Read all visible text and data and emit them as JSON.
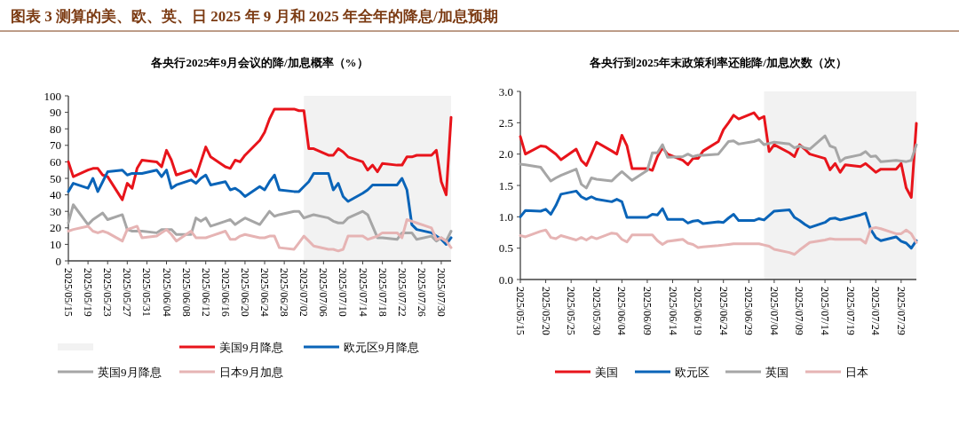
{
  "chart_data": [
    {
      "type": "line",
      "title": "各央行2025年9月会议的降/加息概率（%）",
      "annotations": [
        "图表 3   测算的美、欧、英、日 2025 年 9 月和 2025 年全年的降息/加息预期"
      ],
      "x": [
        "2025-05-15",
        "2025-05-16",
        "2025-05-19",
        "2025-05-20",
        "2025-05-21",
        "2025-05-22",
        "2025-05-23",
        "2025-05-26",
        "2025-05-27",
        "2025-05-28",
        "2025-05-29",
        "2025-05-30",
        "2025-06-02",
        "2025-06-03",
        "2025-06-04",
        "2025-06-05",
        "2025-06-06",
        "2025-06-09",
        "2025-06-10",
        "2025-06-11",
        "2025-06-12",
        "2025-06-13",
        "2025-06-16",
        "2025-06-17",
        "2025-06-18",
        "2025-06-19",
        "2025-06-20",
        "2025-06-23",
        "2025-06-24",
        "2025-06-25",
        "2025-06-26",
        "2025-06-27",
        "2025-06-30",
        "2025-07-01",
        "2025-07-02",
        "2025-07-03",
        "2025-07-04",
        "2025-07-07",
        "2025-07-08",
        "2025-07-09",
        "2025-07-10",
        "2025-07-11",
        "2025-07-14",
        "2025-07-15",
        "2025-07-16",
        "2025-07-17",
        "2025-07-18",
        "2025-07-21",
        "2025-07-22",
        "2025-07-23",
        "2025-07-24",
        "2025-07-25",
        "2025-07-28",
        "2025-07-29",
        "2025-07-30",
        "2025-07-31",
        "2025-08-01"
      ],
      "series": [
        {
          "name": "美国9月降息",
          "color": "#e8141b",
          "values": [
            60,
            51,
            55,
            56,
            56,
            52,
            51,
            37,
            47,
            44,
            56,
            61,
            60,
            57,
            67,
            61,
            52,
            55,
            51,
            60,
            69,
            63,
            57,
            56,
            61,
            60,
            64,
            73,
            78,
            86,
            92,
            92,
            92,
            91,
            91,
            68,
            68,
            64,
            64,
            68,
            66,
            63,
            60,
            55,
            58,
            54,
            59,
            58,
            58,
            63,
            63,
            64,
            64,
            67,
            48,
            40,
            87
          ]
        },
        {
          "name": "欧元区9月降息",
          "color": "#0a64b8",
          "values": [
            42,
            47,
            44,
            50,
            42,
            48,
            54,
            55,
            52,
            53,
            53,
            53,
            55,
            51,
            55,
            44,
            46,
            49,
            47,
            50,
            52,
            46,
            48,
            43,
            44,
            42,
            39,
            45,
            43,
            48,
            52,
            43,
            42,
            42,
            45,
            48,
            53,
            53,
            43,
            47,
            39,
            36,
            41,
            43,
            46,
            46,
            46,
            46,
            50,
            43,
            22,
            19,
            17,
            15,
            13,
            10,
            14
          ]
        },
        {
          "name": "英国9月降息",
          "color": "#a6a6a6",
          "values": [
            23,
            34,
            22,
            25,
            27,
            29,
            25,
            28,
            19,
            18,
            18,
            18,
            17,
            19,
            19,
            19,
            16,
            16,
            26,
            24,
            26,
            21,
            24,
            25,
            22,
            24,
            26,
            22,
            26,
            30,
            27,
            28,
            30,
            30,
            26,
            27,
            28,
            26,
            24,
            23,
            23,
            26,
            30,
            28,
            21,
            14,
            14,
            13,
            17,
            17,
            17,
            13,
            15,
            12,
            14,
            12,
            18
          ]
        },
        {
          "name": "日本9月加息",
          "color": "#e6b4b4",
          "values": [
            18,
            19,
            21,
            18,
            17,
            18,
            17,
            12,
            19,
            20,
            21,
            14,
            15,
            17,
            19,
            16,
            12,
            18,
            14,
            14,
            14,
            15,
            18,
            13,
            13,
            15,
            16,
            14,
            14,
            15,
            15,
            8,
            7,
            11,
            15,
            12,
            9,
            7,
            7,
            6,
            7,
            15,
            15,
            13,
            14,
            15,
            17,
            17,
            14,
            25,
            24,
            23,
            20,
            13,
            14,
            12,
            8
          ]
        }
      ],
      "xlim": [
        "2025-05-15",
        "2025-08-01"
      ],
      "xticks": [
        {
          "value": "2025-05-15",
          "label": "2025/05/15"
        },
        {
          "value": "2025-05-19",
          "label": "2025/05/19"
        },
        {
          "value": "2025-05-23",
          "label": "2025/05/23"
        },
        {
          "value": "2025-05-27",
          "label": "2025/05/27"
        },
        {
          "value": "2025-05-31",
          "label": "2025/05/31"
        },
        {
          "value": "2025-06-04",
          "label": "2025/06/04"
        },
        {
          "value": "2025-06-08",
          "label": "2025/06/08"
        },
        {
          "value": "2025-06-12",
          "label": "2025/06/12"
        },
        {
          "value": "2025-06-16",
          "label": "2025/06/16"
        },
        {
          "value": "2025-06-20",
          "label": "2025/06/20"
        },
        {
          "value": "2025-06-24",
          "label": "2025/06/24"
        },
        {
          "value": "2025-06-28",
          "label": "2025/06/28"
        },
        {
          "value": "2025-07-02",
          "label": "2025/07/02"
        },
        {
          "value": "2025-07-06",
          "label": "2025/07/06"
        },
        {
          "value": "2025-07-10",
          "label": "2025/07/10"
        },
        {
          "value": "2025-07-14",
          "label": "2025/07/14"
        },
        {
          "value": "2025-07-18",
          "label": "2025/07/18"
        },
        {
          "value": "2025-07-22",
          "label": "2025/07/22"
        },
        {
          "value": "2025-07-26",
          "label": "2025/07/26"
        },
        {
          "value": "2025-07-30",
          "label": "2025/07/30"
        }
      ],
      "ylim": [
        0,
        100
      ],
      "yticks": [
        0,
        10,
        20,
        30,
        40,
        50,
        60,
        70,
        80,
        90,
        100
      ],
      "bands": [
        {
          "axis": "x",
          "from": "2025-07-02",
          "to": "2025-08-01",
          "color": "#f2f2f2"
        }
      ],
      "grid": false,
      "legend": "bottom",
      "line_style": "solid",
      "marker": "none"
    },
    {
      "type": "line",
      "title": "各央行到2025年末政策利率还能降/加息次数（次）",
      "x": [
        "2025-05-15",
        "2025-05-16",
        "2025-05-19",
        "2025-05-20",
        "2025-05-21",
        "2025-05-22",
        "2025-05-23",
        "2025-05-26",
        "2025-05-27",
        "2025-05-28",
        "2025-05-29",
        "2025-05-30",
        "2025-06-02",
        "2025-06-03",
        "2025-06-04",
        "2025-06-05",
        "2025-06-06",
        "2025-06-09",
        "2025-06-10",
        "2025-06-11",
        "2025-06-12",
        "2025-06-13",
        "2025-06-16",
        "2025-06-17",
        "2025-06-18",
        "2025-06-19",
        "2025-06-20",
        "2025-06-23",
        "2025-06-24",
        "2025-06-25",
        "2025-06-26",
        "2025-06-27",
        "2025-06-30",
        "2025-07-01",
        "2025-07-02",
        "2025-07-03",
        "2025-07-04",
        "2025-07-07",
        "2025-07-08",
        "2025-07-09",
        "2025-07-10",
        "2025-07-11",
        "2025-07-14",
        "2025-07-15",
        "2025-07-16",
        "2025-07-17",
        "2025-07-18",
        "2025-07-21",
        "2025-07-22",
        "2025-07-23",
        "2025-07-24",
        "2025-07-25",
        "2025-07-28",
        "2025-07-29",
        "2025-07-30",
        "2025-07-31",
        "2025-08-01"
      ],
      "series": [
        {
          "name": "美国",
          "color": "#e8141b",
          "values": [
            2.28,
            2.0,
            2.13,
            2.12,
            2.06,
            2.0,
            1.91,
            2.08,
            1.9,
            1.82,
            2.0,
            2.19,
            2.05,
            2.0,
            2.3,
            2.13,
            1.77,
            1.77,
            1.74,
            1.96,
            2.1,
            2.0,
            1.9,
            1.83,
            1.93,
            1.93,
            2.05,
            2.2,
            2.39,
            2.5,
            2.62,
            2.56,
            2.66,
            2.56,
            2.6,
            2.04,
            2.15,
            2.02,
            1.96,
            2.15,
            2.08,
            2.0,
            1.93,
            1.75,
            1.85,
            1.71,
            1.83,
            1.8,
            1.85,
            1.78,
            1.71,
            1.76,
            1.76,
            1.85,
            1.46,
            1.31,
            2.49
          ]
        },
        {
          "name": "欧元区",
          "color": "#0a64b8",
          "values": [
            1.0,
            1.1,
            1.09,
            1.12,
            1.04,
            1.18,
            1.36,
            1.41,
            1.32,
            1.28,
            1.32,
            1.28,
            1.24,
            1.28,
            1.24,
            0.99,
            0.99,
            0.99,
            1.04,
            1.03,
            1.13,
            0.96,
            0.96,
            0.9,
            0.93,
            0.94,
            0.89,
            0.92,
            0.91,
            0.98,
            1.04,
            0.94,
            0.94,
            0.97,
            0.95,
            1.02,
            1.09,
            1.11,
            0.99,
            0.94,
            0.88,
            0.83,
            0.91,
            0.97,
            0.98,
            0.95,
            0.97,
            1.03,
            1.06,
            0.8,
            0.67,
            0.62,
            0.68,
            0.61,
            0.58,
            0.5,
            0.62
          ]
        },
        {
          "name": "英国",
          "color": "#a6a6a6",
          "values": [
            1.84,
            1.83,
            1.79,
            1.68,
            1.57,
            1.62,
            1.66,
            1.76,
            1.52,
            1.46,
            1.62,
            1.6,
            1.57,
            1.65,
            1.72,
            1.65,
            1.58,
            1.74,
            2.02,
            2.02,
            2.15,
            1.95,
            1.96,
            2.0,
            1.96,
            1.98,
            1.98,
            2.0,
            2.1,
            2.2,
            2.21,
            2.16,
            2.2,
            2.23,
            2.15,
            2.17,
            2.19,
            2.16,
            2.1,
            2.13,
            2.1,
            2.08,
            2.29,
            2.13,
            2.1,
            1.88,
            1.94,
            1.99,
            2.04,
            1.96,
            1.97,
            1.88,
            1.9,
            1.89,
            1.88,
            1.9,
            2.15
          ]
        },
        {
          "name": "日本",
          "color": "#e6b4b4",
          "values": [
            0.7,
            0.68,
            0.77,
            0.79,
            0.67,
            0.65,
            0.7,
            0.63,
            0.67,
            0.63,
            0.68,
            0.65,
            0.74,
            0.73,
            0.64,
            0.6,
            0.71,
            0.71,
            0.71,
            0.62,
            0.56,
            0.61,
            0.64,
            0.58,
            0.56,
            0.51,
            0.52,
            0.54,
            0.55,
            0.56,
            0.57,
            0.57,
            0.57,
            0.57,
            0.55,
            0.53,
            0.48,
            0.43,
            0.4,
            0.47,
            0.53,
            0.59,
            0.63,
            0.65,
            0.64,
            0.64,
            0.64,
            0.64,
            0.58,
            0.81,
            0.83,
            0.81,
            0.73,
            0.73,
            0.79,
            0.73,
            0.59
          ]
        }
      ],
      "xlim": [
        "2025-05-15",
        "2025-08-01"
      ],
      "xticks": [
        {
          "value": "2025-05-15",
          "label": "2025/05/15"
        },
        {
          "value": "2025-05-20",
          "label": "2025/05/20"
        },
        {
          "value": "2025-05-25",
          "label": "2025/05/25"
        },
        {
          "value": "2025-05-30",
          "label": "2025/05/30"
        },
        {
          "value": "2025-06-04",
          "label": "2025/06/04"
        },
        {
          "value": "2025-06-09",
          "label": "2025/06/09"
        },
        {
          "value": "2025-06-14",
          "label": "2025/06/14"
        },
        {
          "value": "2025-06-19",
          "label": "2025/06/19"
        },
        {
          "value": "2025-06-24",
          "label": "2025/06/24"
        },
        {
          "value": "2025-06-29",
          "label": "2025/06/29"
        },
        {
          "value": "2025-07-04",
          "label": "2025/07/04"
        },
        {
          "value": "2025-07-09",
          "label": "2025/07/09"
        },
        {
          "value": "2025-07-14",
          "label": "2025/07/14"
        },
        {
          "value": "2025-07-19",
          "label": "2025/07/19"
        },
        {
          "value": "2025-07-24",
          "label": "2025/07/24"
        },
        {
          "value": "2025-07-29",
          "label": "2025/07/29"
        }
      ],
      "ylim": [
        0,
        3
      ],
      "yticks": [
        {
          "value": 0,
          "label": "0.0"
        },
        {
          "value": 0.5,
          "label": "0.5"
        },
        {
          "value": 1,
          "label": "1.0"
        },
        {
          "value": 1.5,
          "label": "1.5"
        },
        {
          "value": 2,
          "label": "2.0"
        },
        {
          "value": 2.5,
          "label": "2.5"
        },
        {
          "value": 3,
          "label": "3.0"
        }
      ],
      "bands": [
        {
          "axis": "x",
          "from": "2025-07-02",
          "to": "2025-08-01",
          "color": "#f2f2f2"
        }
      ],
      "grid": false,
      "legend": "bottom",
      "line_style": "solid",
      "marker": "none"
    }
  ]
}
